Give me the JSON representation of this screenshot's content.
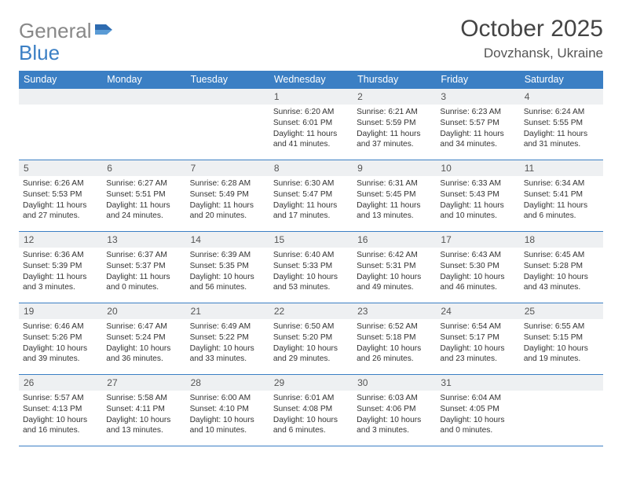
{
  "brand": {
    "part1": "General",
    "part2": "Blue"
  },
  "title": "October 2025",
  "location": "Dovzhansk, Ukraine",
  "columns": [
    "Sunday",
    "Monday",
    "Tuesday",
    "Wednesday",
    "Thursday",
    "Friday",
    "Saturday"
  ],
  "colors": {
    "header_bg": "#3b7fc4",
    "header_text": "#ffffff",
    "daynum_bg": "#eef0f2",
    "border": "#3b7fc4",
    "text": "#333333",
    "brand_gray": "#888888",
    "brand_blue": "#3b7fc4"
  },
  "typography": {
    "title_fontsize": 30,
    "location_fontsize": 17,
    "header_fontsize": 12.5,
    "daynum_fontsize": 12,
    "cell_fontsize": 10.2
  },
  "weeks": [
    [
      {
        "day": "",
        "lines": []
      },
      {
        "day": "",
        "lines": []
      },
      {
        "day": "",
        "lines": []
      },
      {
        "day": "1",
        "lines": [
          "Sunrise: 6:20 AM",
          "Sunset: 6:01 PM",
          "Daylight: 11 hours and 41 minutes."
        ]
      },
      {
        "day": "2",
        "lines": [
          "Sunrise: 6:21 AM",
          "Sunset: 5:59 PM",
          "Daylight: 11 hours and 37 minutes."
        ]
      },
      {
        "day": "3",
        "lines": [
          "Sunrise: 6:23 AM",
          "Sunset: 5:57 PM",
          "Daylight: 11 hours and 34 minutes."
        ]
      },
      {
        "day": "4",
        "lines": [
          "Sunrise: 6:24 AM",
          "Sunset: 5:55 PM",
          "Daylight: 11 hours and 31 minutes."
        ]
      }
    ],
    [
      {
        "day": "5",
        "lines": [
          "Sunrise: 6:26 AM",
          "Sunset: 5:53 PM",
          "Daylight: 11 hours and 27 minutes."
        ]
      },
      {
        "day": "6",
        "lines": [
          "Sunrise: 6:27 AM",
          "Sunset: 5:51 PM",
          "Daylight: 11 hours and 24 minutes."
        ]
      },
      {
        "day": "7",
        "lines": [
          "Sunrise: 6:28 AM",
          "Sunset: 5:49 PM",
          "Daylight: 11 hours and 20 minutes."
        ]
      },
      {
        "day": "8",
        "lines": [
          "Sunrise: 6:30 AM",
          "Sunset: 5:47 PM",
          "Daylight: 11 hours and 17 minutes."
        ]
      },
      {
        "day": "9",
        "lines": [
          "Sunrise: 6:31 AM",
          "Sunset: 5:45 PM",
          "Daylight: 11 hours and 13 minutes."
        ]
      },
      {
        "day": "10",
        "lines": [
          "Sunrise: 6:33 AM",
          "Sunset: 5:43 PM",
          "Daylight: 11 hours and 10 minutes."
        ]
      },
      {
        "day": "11",
        "lines": [
          "Sunrise: 6:34 AM",
          "Sunset: 5:41 PM",
          "Daylight: 11 hours and 6 minutes."
        ]
      }
    ],
    [
      {
        "day": "12",
        "lines": [
          "Sunrise: 6:36 AM",
          "Sunset: 5:39 PM",
          "Daylight: 11 hours and 3 minutes."
        ]
      },
      {
        "day": "13",
        "lines": [
          "Sunrise: 6:37 AM",
          "Sunset: 5:37 PM",
          "Daylight: 11 hours and 0 minutes."
        ]
      },
      {
        "day": "14",
        "lines": [
          "Sunrise: 6:39 AM",
          "Sunset: 5:35 PM",
          "Daylight: 10 hours and 56 minutes."
        ]
      },
      {
        "day": "15",
        "lines": [
          "Sunrise: 6:40 AM",
          "Sunset: 5:33 PM",
          "Daylight: 10 hours and 53 minutes."
        ]
      },
      {
        "day": "16",
        "lines": [
          "Sunrise: 6:42 AM",
          "Sunset: 5:31 PM",
          "Daylight: 10 hours and 49 minutes."
        ]
      },
      {
        "day": "17",
        "lines": [
          "Sunrise: 6:43 AM",
          "Sunset: 5:30 PM",
          "Daylight: 10 hours and 46 minutes."
        ]
      },
      {
        "day": "18",
        "lines": [
          "Sunrise: 6:45 AM",
          "Sunset: 5:28 PM",
          "Daylight: 10 hours and 43 minutes."
        ]
      }
    ],
    [
      {
        "day": "19",
        "lines": [
          "Sunrise: 6:46 AM",
          "Sunset: 5:26 PM",
          "Daylight: 10 hours and 39 minutes."
        ]
      },
      {
        "day": "20",
        "lines": [
          "Sunrise: 6:47 AM",
          "Sunset: 5:24 PM",
          "Daylight: 10 hours and 36 minutes."
        ]
      },
      {
        "day": "21",
        "lines": [
          "Sunrise: 6:49 AM",
          "Sunset: 5:22 PM",
          "Daylight: 10 hours and 33 minutes."
        ]
      },
      {
        "day": "22",
        "lines": [
          "Sunrise: 6:50 AM",
          "Sunset: 5:20 PM",
          "Daylight: 10 hours and 29 minutes."
        ]
      },
      {
        "day": "23",
        "lines": [
          "Sunrise: 6:52 AM",
          "Sunset: 5:18 PM",
          "Daylight: 10 hours and 26 minutes."
        ]
      },
      {
        "day": "24",
        "lines": [
          "Sunrise: 6:54 AM",
          "Sunset: 5:17 PM",
          "Daylight: 10 hours and 23 minutes."
        ]
      },
      {
        "day": "25",
        "lines": [
          "Sunrise: 6:55 AM",
          "Sunset: 5:15 PM",
          "Daylight: 10 hours and 19 minutes."
        ]
      }
    ],
    [
      {
        "day": "26",
        "lines": [
          "Sunrise: 5:57 AM",
          "Sunset: 4:13 PM",
          "Daylight: 10 hours and 16 minutes."
        ]
      },
      {
        "day": "27",
        "lines": [
          "Sunrise: 5:58 AM",
          "Sunset: 4:11 PM",
          "Daylight: 10 hours and 13 minutes."
        ]
      },
      {
        "day": "28",
        "lines": [
          "Sunrise: 6:00 AM",
          "Sunset: 4:10 PM",
          "Daylight: 10 hours and 10 minutes."
        ]
      },
      {
        "day": "29",
        "lines": [
          "Sunrise: 6:01 AM",
          "Sunset: 4:08 PM",
          "Daylight: 10 hours and 6 minutes."
        ]
      },
      {
        "day": "30",
        "lines": [
          "Sunrise: 6:03 AM",
          "Sunset: 4:06 PM",
          "Daylight: 10 hours and 3 minutes."
        ]
      },
      {
        "day": "31",
        "lines": [
          "Sunrise: 6:04 AM",
          "Sunset: 4:05 PM",
          "Daylight: 10 hours and 0 minutes."
        ]
      },
      {
        "day": "",
        "lines": []
      }
    ]
  ]
}
